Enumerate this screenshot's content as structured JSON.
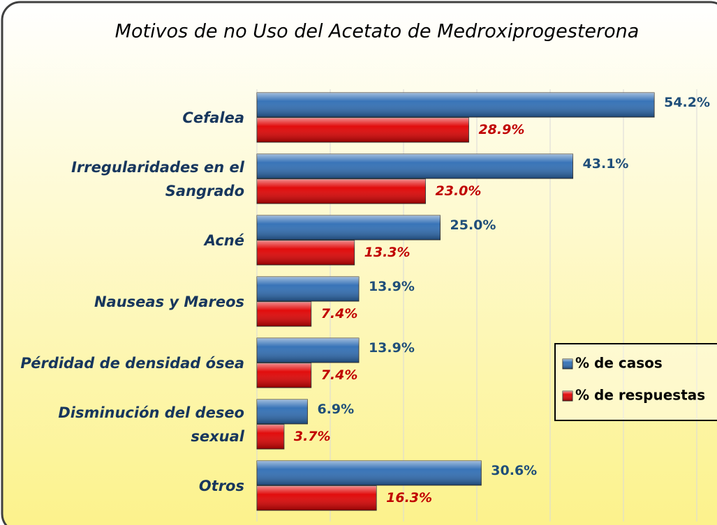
{
  "chart_data": {
    "type": "bar",
    "orientation": "horizontal",
    "title": "Motivos de no Uso del Acetato de Medroxiprogesterona",
    "categories": [
      "Cefalea",
      "Irregularidades en el Sangrado",
      "Acné",
      "Nauseas y Mareos",
      "Pérdidad de densidad ósea",
      "Disminución del deseo sexual",
      "Otros"
    ],
    "series": [
      {
        "name": "% de casos",
        "color": "#2e6db4",
        "values": [
          54.2,
          43.1,
          25.0,
          13.9,
          13.9,
          6.9,
          30.6
        ],
        "value_labels": [
          "54.2%",
          "43.1%",
          "25.0%",
          "13.9%",
          "13.9%",
          "6.9%",
          "30.6%"
        ]
      },
      {
        "name": "% de respuestas",
        "color": "#e00000",
        "values": [
          28.9,
          23.0,
          13.3,
          7.4,
          7.4,
          3.7,
          16.3
        ],
        "value_labels": [
          "28.9%",
          "23.0%",
          "13.3%",
          "7.4%",
          "7.4%",
          "3.7%",
          "16.3%"
        ]
      }
    ],
    "xlim": [
      0,
      60
    ],
    "xticks": [
      0,
      10,
      20,
      30,
      40,
      50,
      60
    ],
    "grid": true,
    "legend": "right"
  }
}
